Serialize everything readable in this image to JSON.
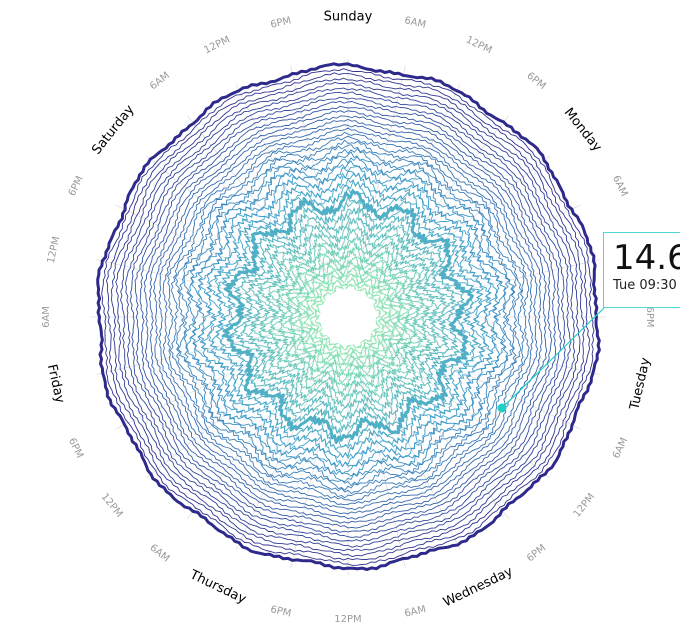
{
  "chart_data": {
    "type": "radial-line",
    "title": "",
    "angular_axis": {
      "days": [
        "Sunday",
        "Monday",
        "Tuesday",
        "Wednesday",
        "Thursday",
        "Friday",
        "Saturday"
      ],
      "hour_ticks": [
        "6AM",
        "12PM",
        "6PM"
      ]
    },
    "ring_count": 48,
    "highlighted_rings": [
      18,
      47
    ],
    "tooltip": {
      "value": "14.6",
      "label": "Tue 09:30"
    },
    "colors": {
      "inner": "#8ee9b0",
      "mid": "#3f9fcc",
      "outer": "#2e2a8c",
      "tooltip_accent": "#22cfc4"
    }
  }
}
